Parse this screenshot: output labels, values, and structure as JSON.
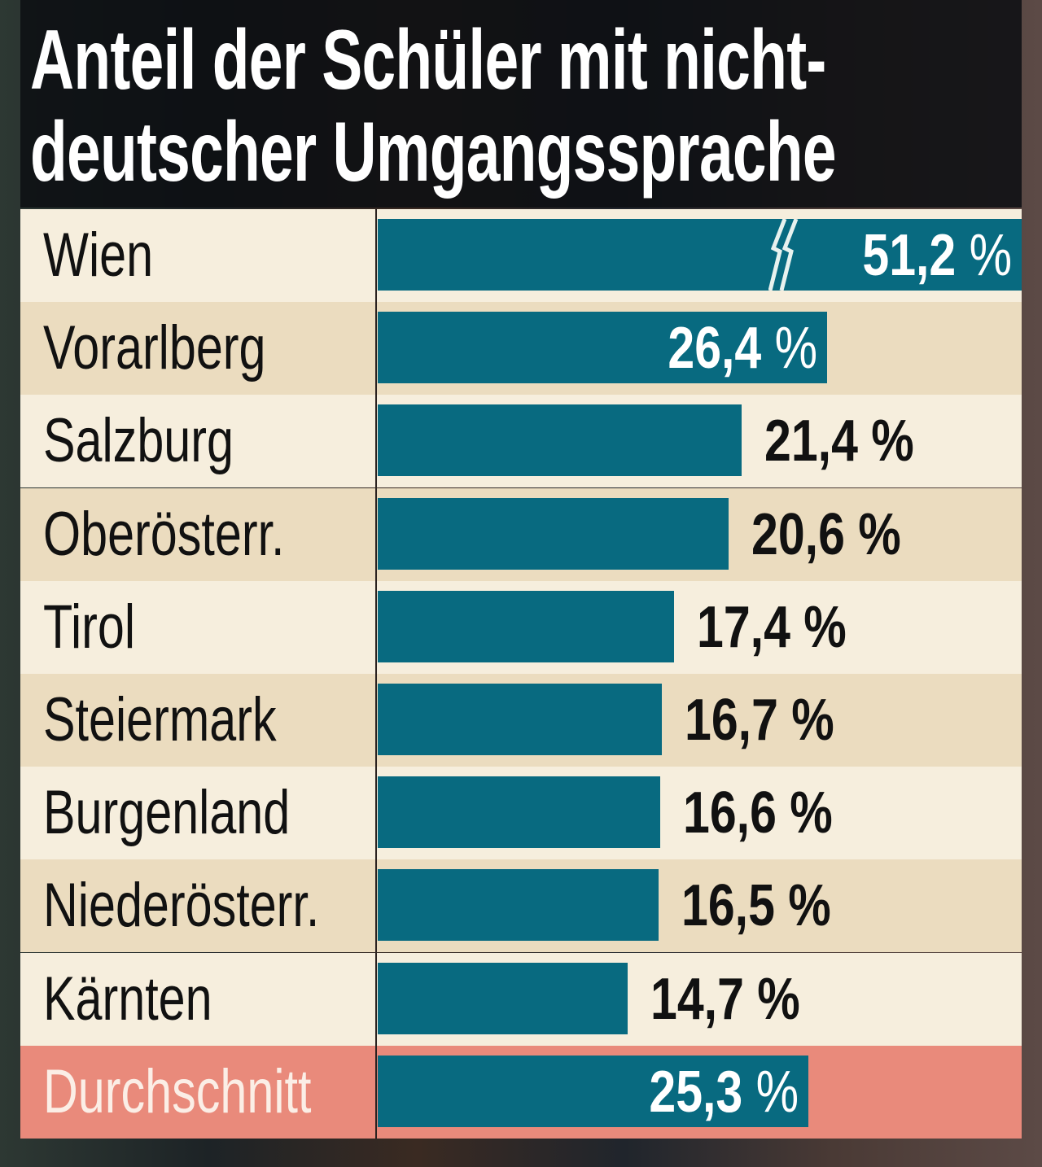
{
  "chart_data": {
    "type": "bar",
    "orientation": "horizontal",
    "title": "Anteil der Schüler mit nicht-deutscher Umgangssprache",
    "title_lines": [
      "Anteil der Schüler mit nicht-",
      "deutscher Umgangssprache"
    ],
    "categories": [
      "Wien",
      "Vorarlberg",
      "Salzburg",
      "Oberösterr.",
      "Tirol",
      "Steiermark",
      "Burgenland",
      "Niederösterr.",
      "Kärnten",
      "Durchschnitt"
    ],
    "values": [
      51.2,
      26.4,
      21.4,
      20.6,
      17.4,
      16.7,
      16.6,
      16.5,
      14.7,
      25.3
    ],
    "value_labels": [
      "51,2 %",
      "26,4 %",
      "21,4 %",
      "20,6 %",
      "17,4 %",
      "16,7 %",
      "16,6 %",
      "16,5 %",
      "14,7 %",
      "25,3 %"
    ],
    "unit": "%",
    "broken_axis_category": "Wien",
    "highlight_category": "Durchschnitt",
    "colors": {
      "bar": "#086a80",
      "row_light": "#f6eedd",
      "row_dark": "#ebdcbf",
      "highlight_row": "#e98a7b",
      "highlight_text": "#fbeee6",
      "title_bg": "#101216"
    },
    "grid": false,
    "legend": "none"
  }
}
